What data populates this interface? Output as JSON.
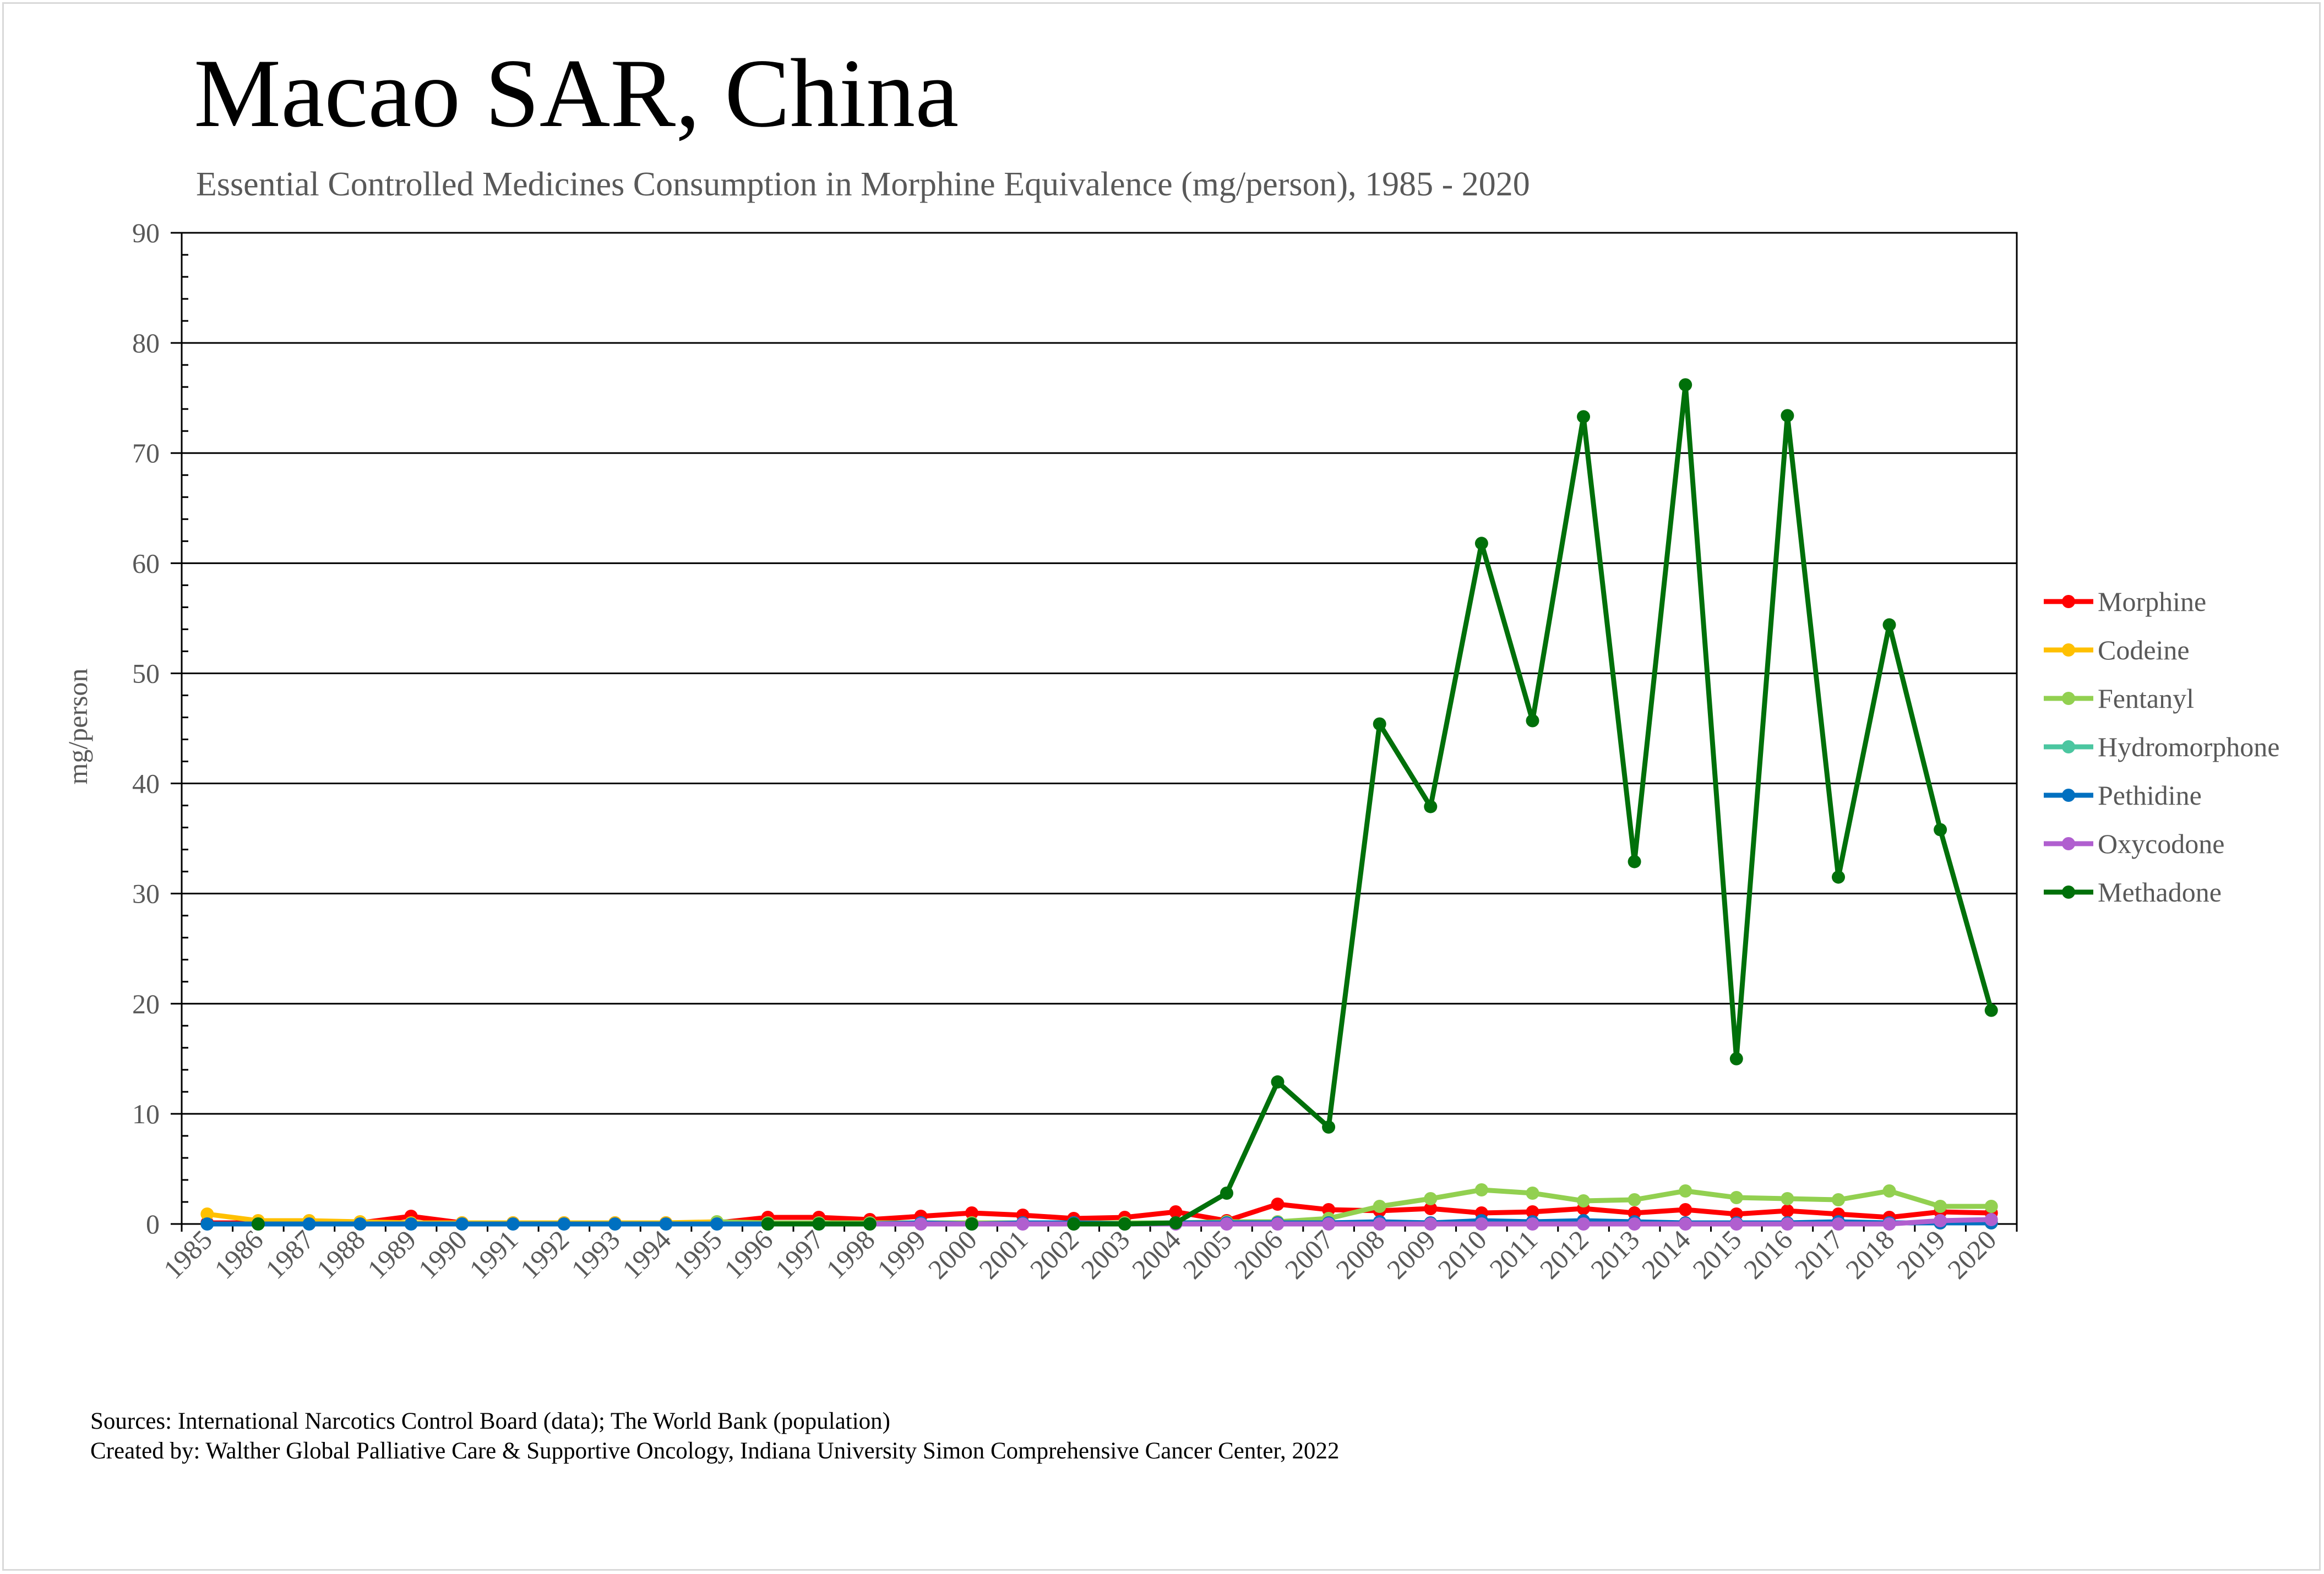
{
  "chart_data": {
    "type": "line",
    "title": "Macao SAR, China",
    "subtitle": "Essential Controlled Medicines Consumption in Morphine Equivalence (mg/person), 1985 - 2020",
    "ylabel": "mg/person",
    "xlabel": "",
    "ylim": [
      0,
      90
    ],
    "yticks": [
      0,
      10,
      20,
      30,
      40,
      50,
      60,
      70,
      80,
      90
    ],
    "grid": true,
    "legend_position": "right",
    "x": [
      "1985",
      "1986",
      "1987",
      "1988",
      "1989",
      "1990",
      "1991",
      "1992",
      "1993",
      "1994",
      "1995",
      "1996",
      "1997",
      "1998",
      "1999",
      "2000",
      "2001",
      "2002",
      "2003",
      "2004",
      "2005",
      "2006",
      "2007",
      "2008",
      "2009",
      "2010",
      "2011",
      "2012",
      "2013",
      "2014",
      "2015",
      "2016",
      "2017",
      "2018",
      "2019",
      "2020"
    ],
    "series": [
      {
        "name": "Morphine",
        "color": "#ff0000",
        "values": [
          0.1,
          0.1,
          0.1,
          0.1,
          0.7,
          0.1,
          0.1,
          0.1,
          0.1,
          0.1,
          0.1,
          0.6,
          0.6,
          0.4,
          0.7,
          1.0,
          0.8,
          0.5,
          0.6,
          1.1,
          0.3,
          1.8,
          1.3,
          1.2,
          1.4,
          1.0,
          1.1,
          1.4,
          1.0,
          1.3,
          0.9,
          1.2,
          0.9,
          0.6,
          1.1,
          1.0
        ]
      },
      {
        "name": "Codeine",
        "color": "#ffc000",
        "values": [
          0.9,
          0.3,
          0.3,
          0.2,
          0.1,
          0.1,
          0.1,
          0.1,
          0.1,
          0.1,
          0.2,
          0.1,
          0.1,
          0.1,
          0.1,
          0.1,
          0.1,
          0.1,
          0.1,
          0.1,
          0.1,
          0.1,
          0.1,
          0.1,
          0.1,
          0.1,
          0.1,
          0.1,
          0.1,
          0.1,
          0.1,
          0.1,
          0.1,
          0.1,
          0.1,
          0.1
        ]
      },
      {
        "name": "Fentanyl",
        "color": "#92d050",
        "values": [
          null,
          null,
          null,
          null,
          null,
          null,
          null,
          null,
          null,
          null,
          0.2,
          0.1,
          0.1,
          0.1,
          0.1,
          0.1,
          0.1,
          0.1,
          0.1,
          0.1,
          0.2,
          0.2,
          0.5,
          1.6,
          2.3,
          3.1,
          2.8,
          2.1,
          2.2,
          3.0,
          2.4,
          2.3,
          2.2,
          3.0,
          1.6,
          1.6
        ]
      },
      {
        "name": "Hydromorphone",
        "color": "#4bc6a0",
        "values": [
          null,
          null,
          null,
          null,
          null,
          null,
          null,
          null,
          null,
          null,
          null,
          null,
          null,
          null,
          null,
          null,
          null,
          null,
          null,
          null,
          null,
          null,
          null,
          null,
          null,
          null,
          null,
          null,
          null,
          null,
          null,
          null,
          null,
          null,
          null,
          null
        ]
      },
      {
        "name": "Pethidine",
        "color": "#0070c0",
        "values": [
          0.0,
          0.0,
          0.0,
          0.0,
          0.0,
          0.0,
          0.0,
          0.0,
          0.0,
          0.0,
          0.0,
          0.0,
          0.0,
          0.0,
          0.1,
          0.0,
          0.1,
          0.1,
          0.0,
          0.1,
          0.1,
          0.1,
          0.1,
          0.2,
          0.1,
          0.3,
          0.2,
          0.3,
          0.2,
          0.1,
          0.1,
          0.1,
          0.2,
          0.1,
          0.1,
          0.1
        ]
      },
      {
        "name": "Oxycodone",
        "color": "#b05fcf",
        "values": [
          null,
          null,
          null,
          null,
          null,
          null,
          null,
          null,
          null,
          null,
          null,
          null,
          null,
          0.0,
          0.0,
          0.0,
          0.0,
          0.0,
          0.0,
          0.0,
          0.0,
          0.0,
          0.0,
          0.0,
          0.0,
          0.0,
          0.0,
          0.0,
          0.0,
          0.0,
          0.0,
          0.0,
          0.0,
          0.0,
          0.3,
          0.4
        ]
      },
      {
        "name": "Methadone",
        "color": "#00700a",
        "values": [
          null,
          0.0,
          null,
          null,
          null,
          null,
          null,
          null,
          null,
          null,
          null,
          0.0,
          0.0,
          0.0,
          null,
          0.0,
          null,
          0.0,
          0.0,
          0.1,
          2.8,
          12.9,
          8.8,
          45.4,
          37.9,
          61.8,
          45.7,
          73.3,
          32.9,
          76.2,
          15.0,
          73.4,
          31.5,
          54.4,
          35.8,
          19.4
        ]
      }
    ]
  },
  "footer": {
    "sources": "Sources: International Narcotics Control Board (data); The World Bank (population)",
    "created_by": "Created by: Walther Global Palliative Care & Supportive Oncology, Indiana University Simon Comprehensive Cancer Center, 2022"
  }
}
